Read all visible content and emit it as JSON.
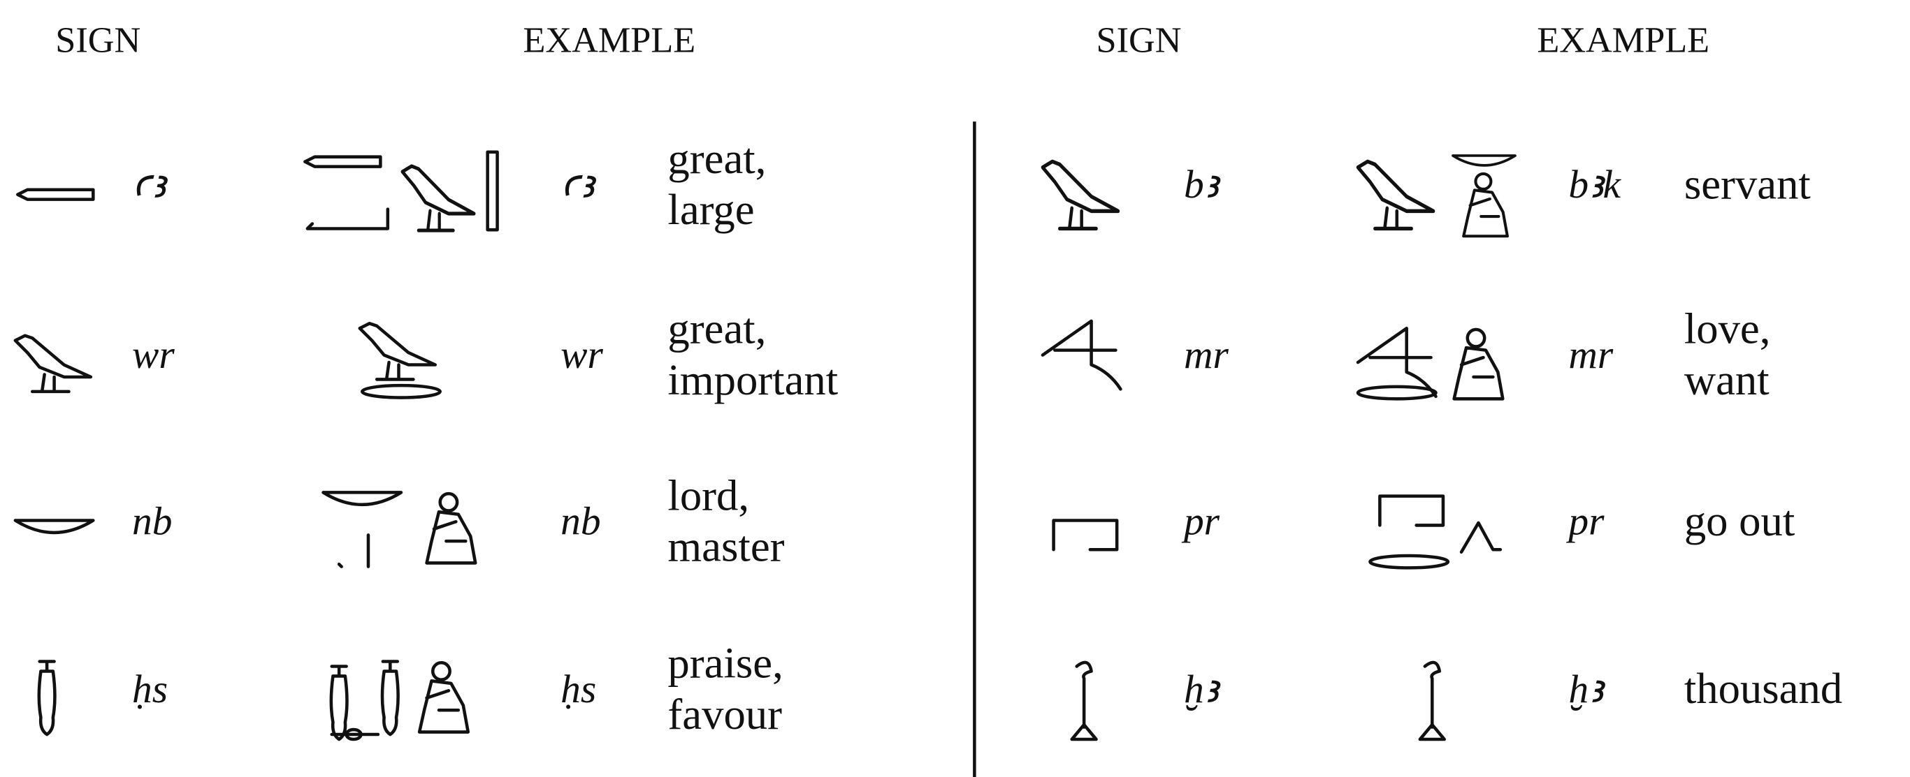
{
  "left": {
    "headers": {
      "sign": "SIGN",
      "example": "EXAMPLE"
    },
    "rows": [
      {
        "translit": "ꜥꜣ",
        "example_translit": "ꜥꜣ",
        "meaning": [
          "great,",
          "large"
        ]
      },
      {
        "translit": "wr",
        "example_translit": "wr",
        "meaning": [
          "great,",
          "important"
        ]
      },
      {
        "translit": "nb",
        "example_translit": "nb",
        "meaning": [
          "lord,",
          "master"
        ]
      },
      {
        "translit": "ḥs",
        "example_translit": "ḥs",
        "meaning": [
          "praise,",
          "favour"
        ]
      }
    ]
  },
  "right": {
    "headers": {
      "sign": "SIGN",
      "example": "EXAMPLE"
    },
    "rows": [
      {
        "translit": "bꜣ",
        "example_translit": "bꜣk",
        "meaning": [
          "servant"
        ]
      },
      {
        "translit": "mr",
        "example_translit": "mr",
        "meaning": [
          "love,",
          "want"
        ]
      },
      {
        "translit": "pr",
        "example_translit": "pr",
        "meaning": [
          "go out"
        ]
      },
      {
        "translit": "ḫꜣ",
        "example_translit": "ḫꜣ",
        "meaning": [
          "thousand"
        ]
      }
    ]
  }
}
